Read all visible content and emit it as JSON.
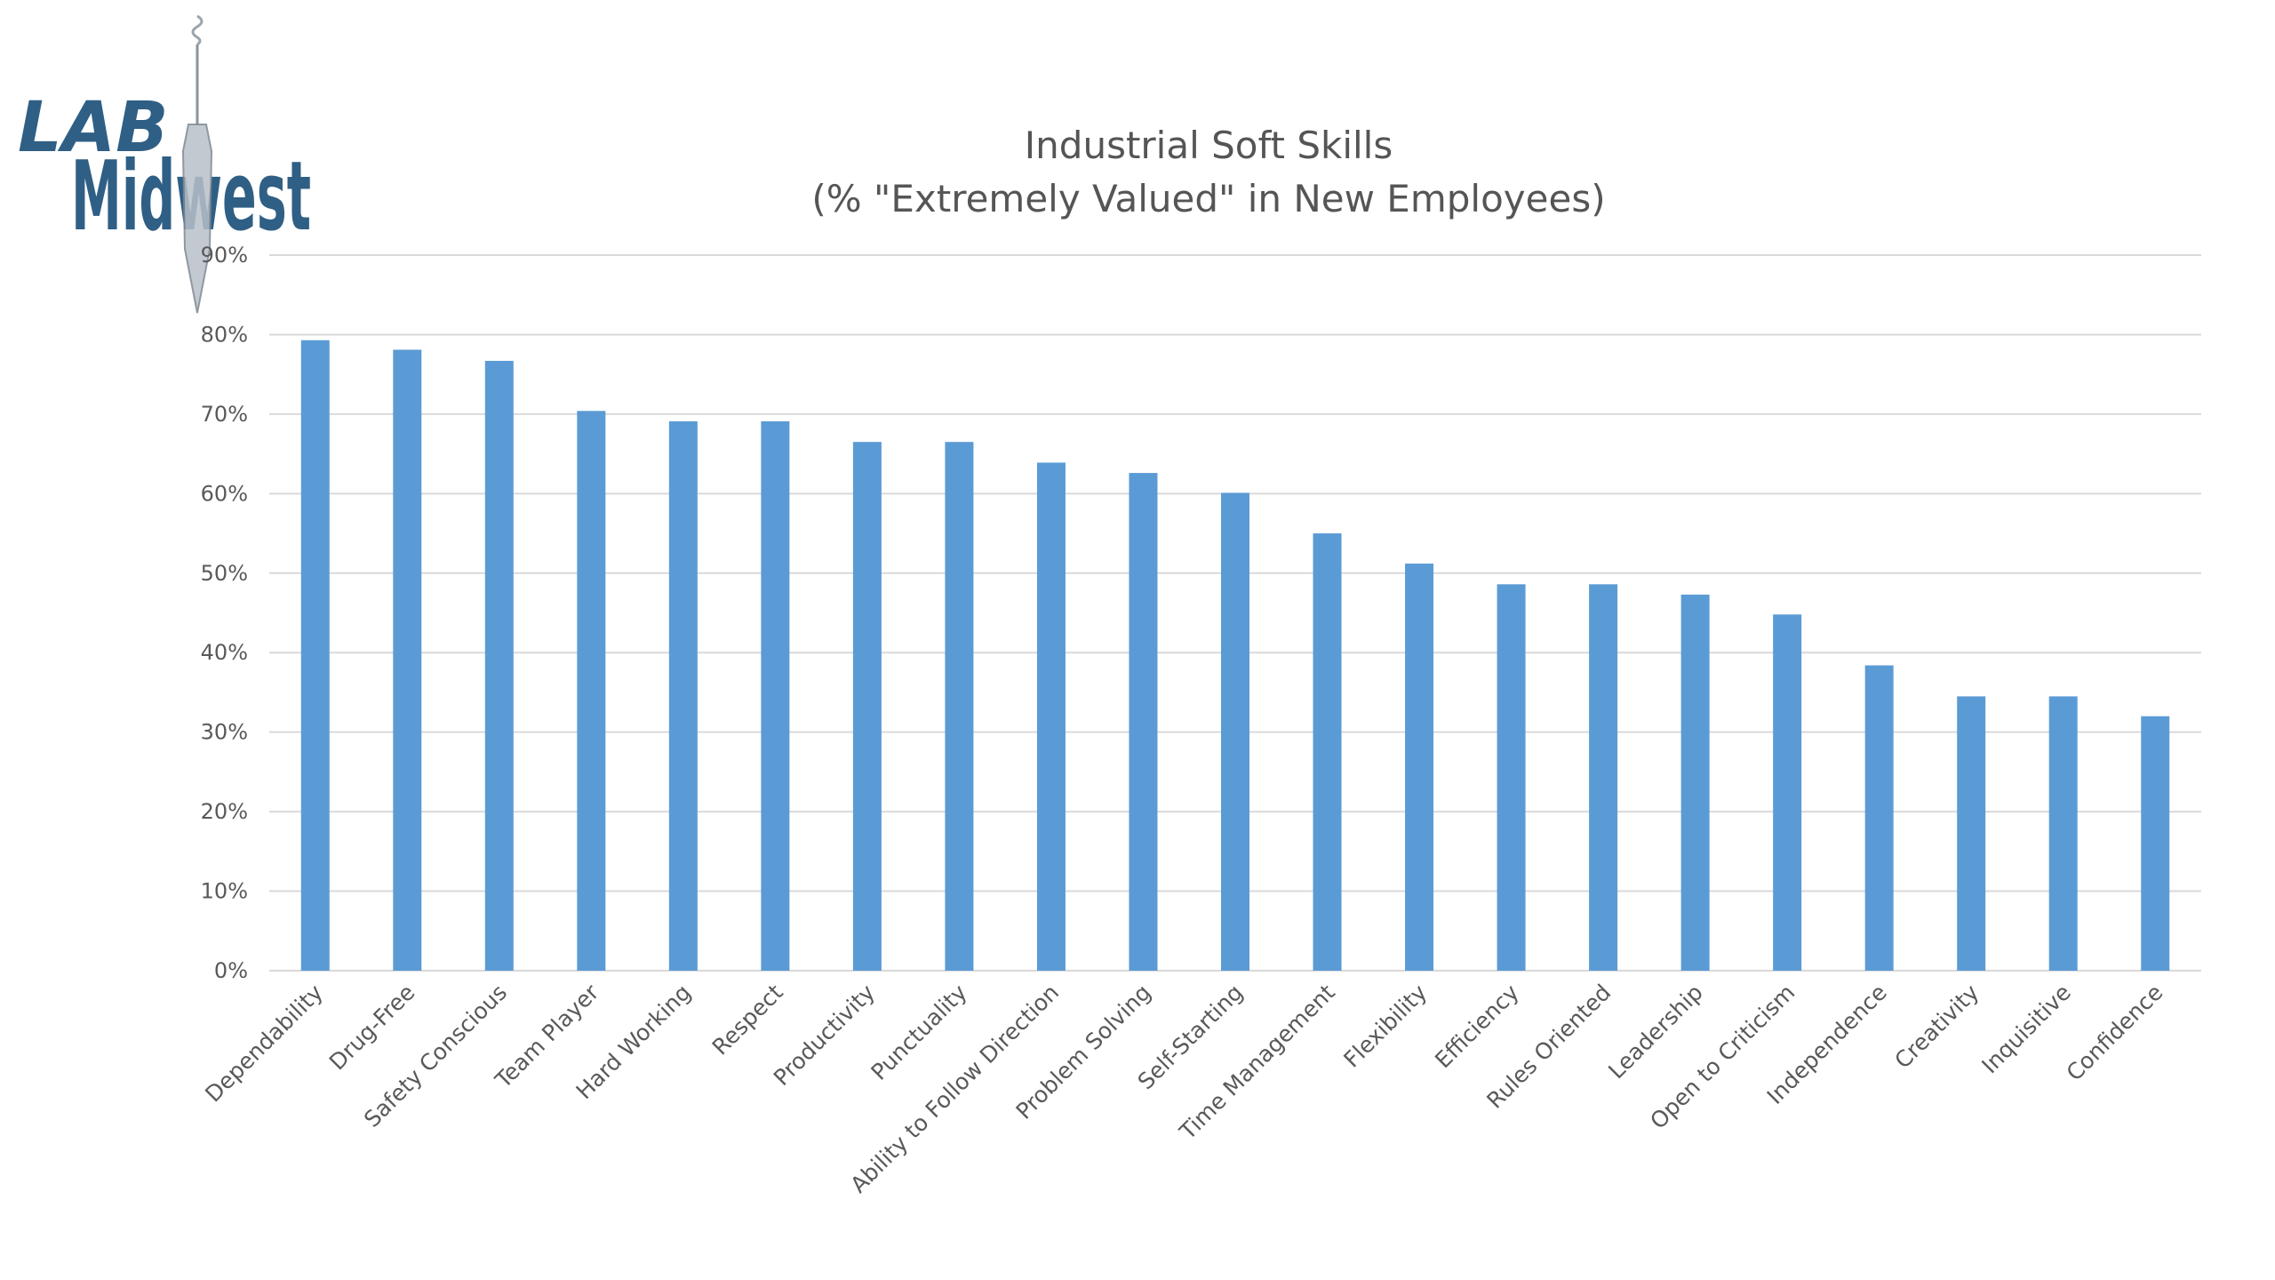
{
  "logo": {
    "line1": "LAB",
    "line2": "Midwest"
  },
  "colors": {
    "bar": "#5b9bd5",
    "grid": "#d9d9d9",
    "text": "#595959",
    "logo": "#2f5f85"
  },
  "chart_data": {
    "type": "bar",
    "title": "Industrial Soft Skills",
    "subtitle": "(% \"Extremely Valued\" in New Employees)",
    "xlabel": "",
    "ylabel": "",
    "ylim": [
      0,
      90
    ],
    "yticks": [
      "0%",
      "10%",
      "20%",
      "30%",
      "40%",
      "50%",
      "60%",
      "70%",
      "80%",
      "90%"
    ],
    "grid": true,
    "legend": "none",
    "categories": [
      "Dependability",
      "Drug-Free",
      "Safety Conscious",
      "Team Player",
      "Hard Working",
      "Respect",
      "Productivity",
      "Punctuality",
      "Ability to Follow Direction",
      "Problem Solving",
      "Self-Starting",
      "Time Management",
      "Flexibility",
      "Efficiency",
      "Rules Oriented",
      "Leadership",
      "Open to Criticism",
      "Independence",
      "Creativity",
      "Inquisitive",
      "Confidence"
    ],
    "values": [
      79.3,
      78.1,
      76.7,
      70.4,
      69.1,
      69.1,
      66.5,
      66.5,
      63.9,
      62.6,
      60.1,
      55.0,
      51.2,
      48.6,
      48.6,
      47.3,
      44.8,
      38.4,
      34.5,
      34.5,
      32.0
    ]
  }
}
